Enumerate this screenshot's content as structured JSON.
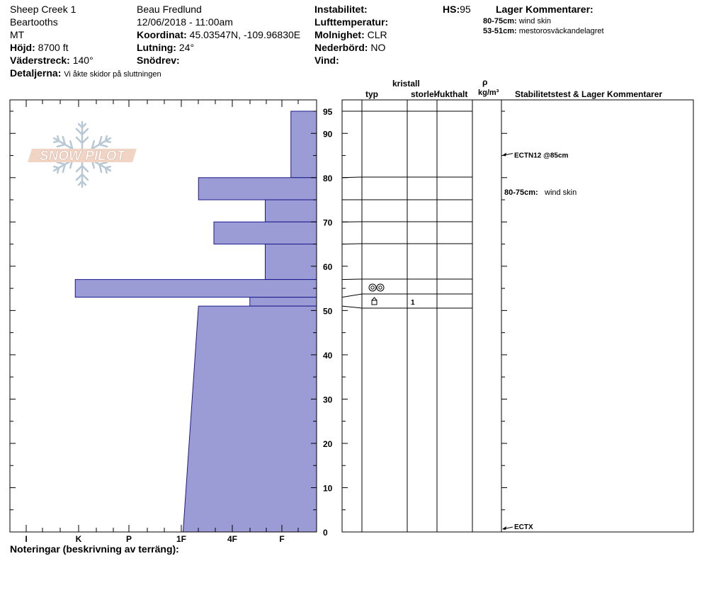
{
  "header": {
    "location": "Sheep Creek 1",
    "range": "Beartooths",
    "state": "MT",
    "elevation_label": "Höjd:",
    "elevation": "8700 ft",
    "aspect_label": "Väderstreck:",
    "aspect": "140°",
    "details_label": "Detaljerna:",
    "details": "Vi åkte skidor på sluttningen",
    "observer": "Beau  Fredlund",
    "datetime": "12/06/2018 - 11:00am",
    "coord_label": "Koordinat:",
    "coord": "45.03547N, -109.96830E",
    "slope_label": "Lutning:",
    "slope": "24°",
    "snowdrift_label": "Snödrev:",
    "instability_label": "Instabilitet:",
    "airtemp_label": "Lufttemperatur:",
    "sky_label": "Molnighet:",
    "sky": "CLR",
    "precip_label": "Nederbörd:",
    "precip": "NO",
    "wind_label": "Vind:",
    "hs_label": "HS:",
    "hs": "95",
    "layer_comments_title": "Lager Kommentarer:",
    "layer_comments": [
      {
        "range": "80-75cm:",
        "text": "wind skin"
      },
      {
        "range": "53-51cm:",
        "text": "mestorosväckandelagret"
      }
    ]
  },
  "logo_text": "SNOW PILOT",
  "columns": {
    "crystal": "kristall",
    "type": "typ",
    "size": "storlek",
    "moisture": "fukthalt",
    "rho": "ρ",
    "density_unit": "kg/m³",
    "stability": "Stabilitetstest & Lager Kommentarer"
  },
  "notes_label": "Noteringar (beskrivning av terräng):",
  "chart_data": {
    "type": "bar",
    "orientation": "horizontal",
    "x_axis": "hand hardness",
    "x_categories": [
      "I",
      "K",
      "P",
      "1F",
      "4F",
      "F"
    ],
    "y_axis": "snow depth (cm)",
    "ylim": [
      0,
      95
    ],
    "y_ticks": [
      0,
      10,
      20,
      30,
      40,
      50,
      60,
      70,
      80,
      90,
      95
    ],
    "layers": [
      {
        "top": 95,
        "bottom": 80,
        "hardness": 0.5
      },
      {
        "top": 80,
        "bottom": 75,
        "hardness": 2.3
      },
      {
        "top": 75,
        "bottom": 70,
        "hardness": 1.0
      },
      {
        "top": 70,
        "bottom": 65,
        "hardness": 2.0
      },
      {
        "top": 65,
        "bottom": 57,
        "hardness": 1.0
      },
      {
        "top": 57,
        "bottom": 53,
        "hardness": 4.7
      },
      {
        "top": 53,
        "bottom": 51,
        "hardness": 1.3
      },
      {
        "top": 51,
        "bottom": 0,
        "hardness_top": 2.3,
        "hardness_bottom": 2.6
      }
    ],
    "layer_symbols": [
      {
        "top": 57,
        "bottom": 53,
        "crystal": "surface hoar",
        "size": ""
      },
      {
        "top": 53,
        "bottom": 51,
        "crystal": "faceted",
        "size": "1"
      }
    ],
    "stability_tests": [
      {
        "label": "ECTN12 @85cm",
        "depth": 85
      },
      {
        "label": "ECTX",
        "depth": 0
      }
    ],
    "profile_comments": [
      {
        "range": "80-75cm:",
        "text": "wind skin",
        "depth": 78
      }
    ]
  }
}
